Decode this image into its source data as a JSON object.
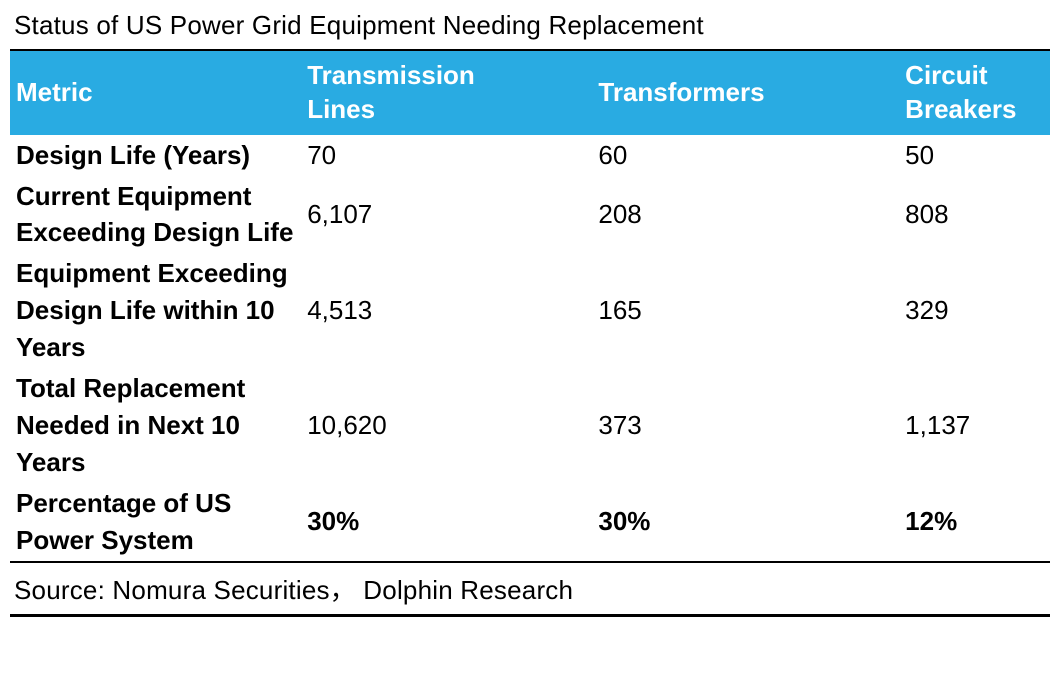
{
  "colors": {
    "header_bg": "#29ABE2",
    "header_text": "#FFFFFF",
    "body_text": "#000000",
    "rule": "#000000"
  },
  "chart_data": {
    "type": "table",
    "title": "Status of US Power Grid Equipment Needing Replacement",
    "columns": [
      "Metric",
      "Transmission Lines",
      "Transformers",
      "Circuit Breakers"
    ],
    "rows": [
      {
        "metric": "Design Life (Years)",
        "values": [
          "70",
          "60",
          "50"
        ],
        "bold_values": false
      },
      {
        "metric": "Current Equipment Exceeding Design Life",
        "values": [
          "6,107",
          "208",
          "808"
        ],
        "bold_values": false
      },
      {
        "metric": "Equipment Exceeding Design Life within 10 Years",
        "values": [
          "4,513",
          "165",
          "329"
        ],
        "bold_values": false
      },
      {
        "metric": "Total Replacement Needed in Next 10 Years",
        "values": [
          "10,620",
          "373",
          "1,137"
        ],
        "bold_values": false
      },
      {
        "metric": "Percentage of US Power System",
        "values": [
          "30%",
          "30%",
          "12%"
        ],
        "bold_values": true
      }
    ],
    "source": "Source: Nomura Securities，  Dolphin Research"
  }
}
